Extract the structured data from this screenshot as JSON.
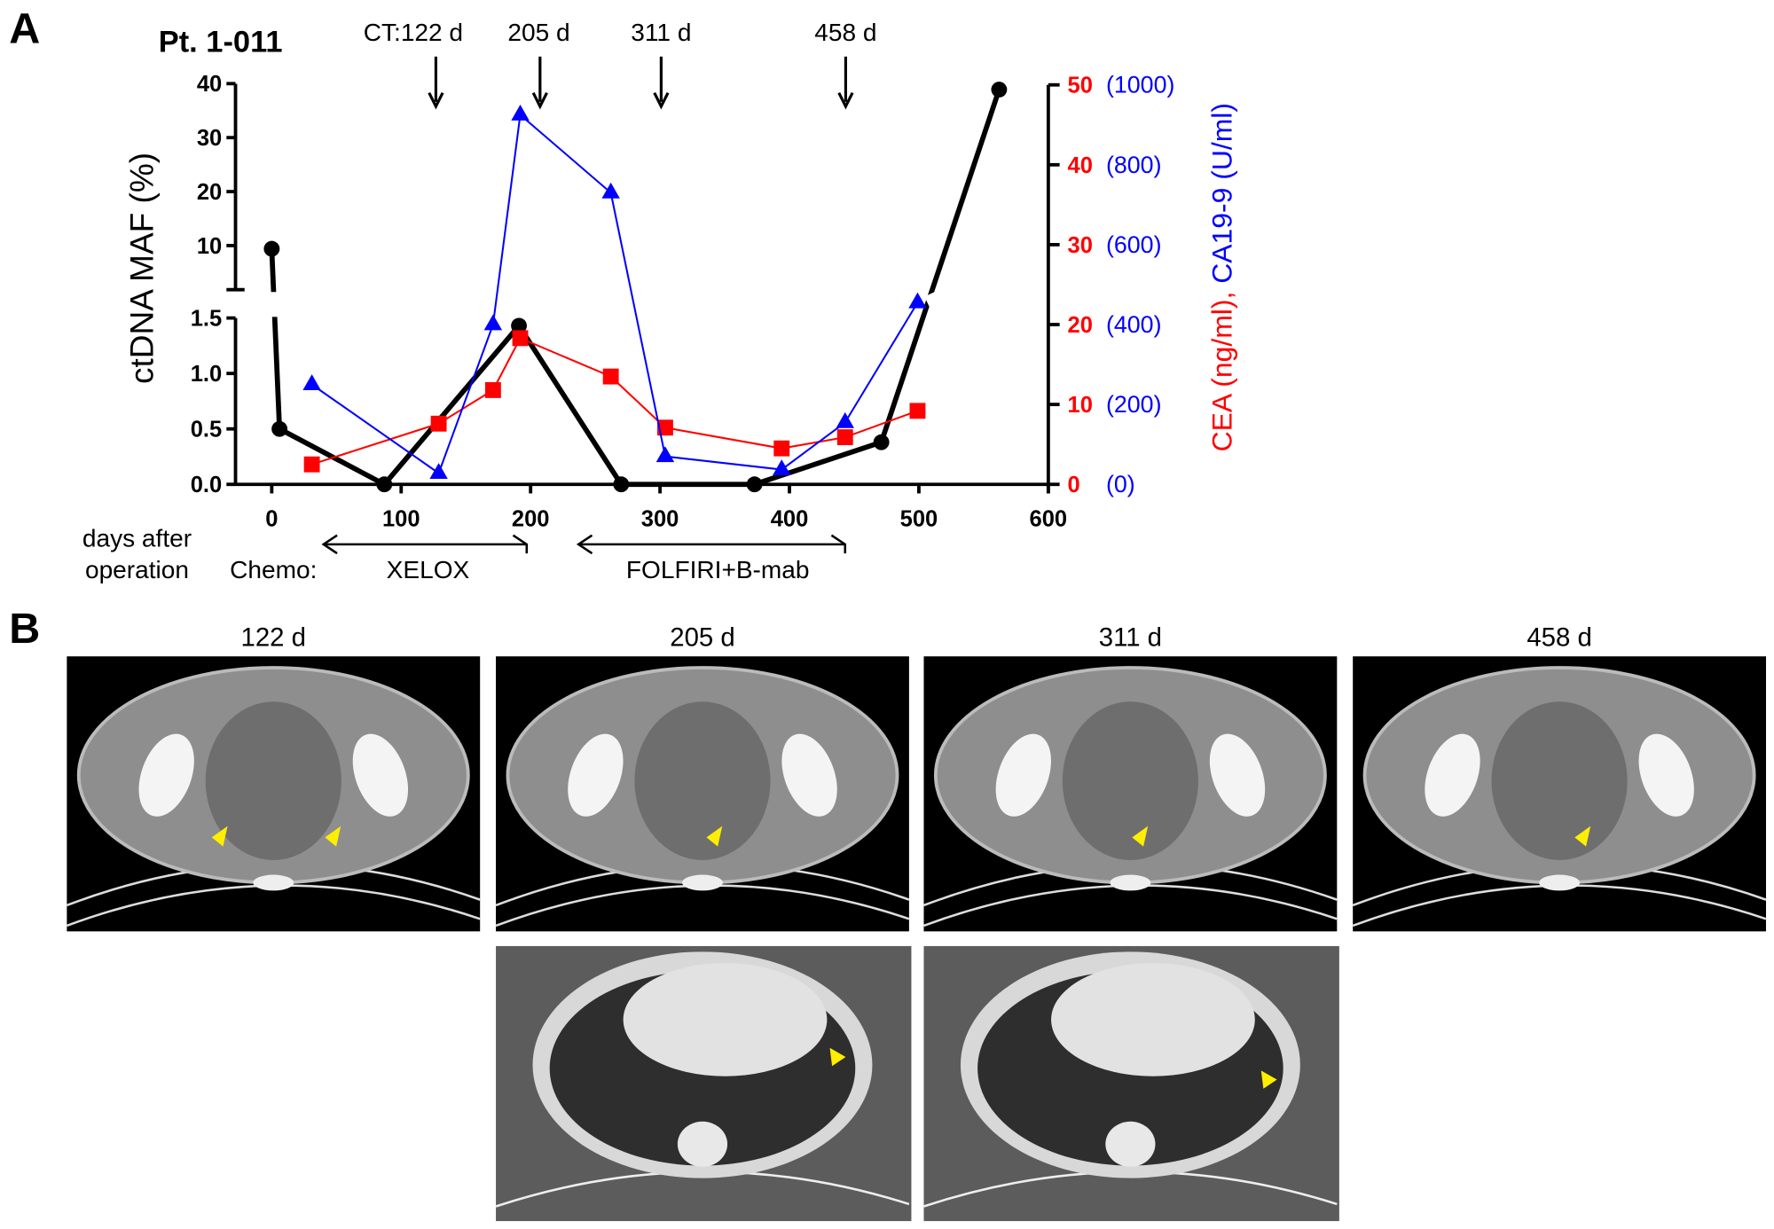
{
  "panel_a": {
    "label": "A",
    "patient": "Pt. 1-011",
    "ct_markers": [
      {
        "label": "CT:122 d",
        "day": 122
      },
      {
        "label": "205 d",
        "day": 205
      },
      {
        "label": "311 d",
        "day": 311
      },
      {
        "label": "458 d",
        "day": 458
      }
    ],
    "xaxis_caption": [
      "days after",
      "operation"
    ],
    "chemo_label": "Chemo:",
    "chemo_regimens": [
      {
        "label": "XELOX",
        "start": 40,
        "end": 197
      },
      {
        "label": "FOLFIRI+B-mab",
        "start": 237,
        "end": 443
      }
    ]
  },
  "chart_data": {
    "type": "line",
    "title": "Pt. 1-011",
    "xlabel": "days after operation",
    "ylabel": "ctDNA MAF (%)",
    "ylabel_right": [
      "CEA (ng/ml), ",
      "CA19-9 (U/ml)"
    ],
    "xlim": [
      -30,
      600
    ],
    "xticks": [
      "0",
      "100",
      "200",
      "300",
      "400",
      "500",
      "600"
    ],
    "y_lower_ticks": [
      "0.0",
      "0.5",
      "1.0",
      "1.5"
    ],
    "y_upper_ticks": [
      "10",
      "20",
      "30",
      "40"
    ],
    "y_break": [
      1.5,
      7
    ],
    "right_ticks_cea": [
      "0",
      "10",
      "20",
      "30",
      "40",
      "50"
    ],
    "right_ticks_ca199": [
      "(0)",
      "(200)",
      "(400)",
      "(600)",
      "(800)",
      "(1000)"
    ],
    "series": [
      {
        "name": "ctDNA MAF (%)",
        "axis": "left",
        "color": "#000000",
        "marker": "circle",
        "x": [
          0,
          6,
          87,
          191,
          270,
          373,
          471,
          562
        ],
        "y": [
          9.4,
          0.5,
          0.0,
          1.43,
          0.0,
          0.0,
          0.38,
          38.9
        ]
      },
      {
        "name": "CEA (ng/ml)",
        "axis": "right",
        "color": "#ff0000",
        "marker": "square",
        "x": [
          31,
          129,
          171,
          192,
          262,
          304,
          394,
          443,
          499
        ],
        "y": [
          2.5,
          7.6,
          11.8,
          18.3,
          13.5,
          7.1,
          4.5,
          5.9,
          9.2
        ]
      },
      {
        "name": "CA19-9 (U/ml)",
        "axis": "right",
        "color": "#0000ff",
        "marker": "triangle",
        "x": [
          31,
          129,
          171,
          192,
          262,
          304,
          394,
          443,
          499
        ],
        "y": [
          250,
          28,
          400,
          925,
          730,
          70,
          37,
          155,
          455
        ]
      }
    ]
  },
  "panel_b": {
    "label": "B",
    "timepoints": [
      "122 d",
      "205 d",
      "311 d",
      "458 d"
    ]
  }
}
